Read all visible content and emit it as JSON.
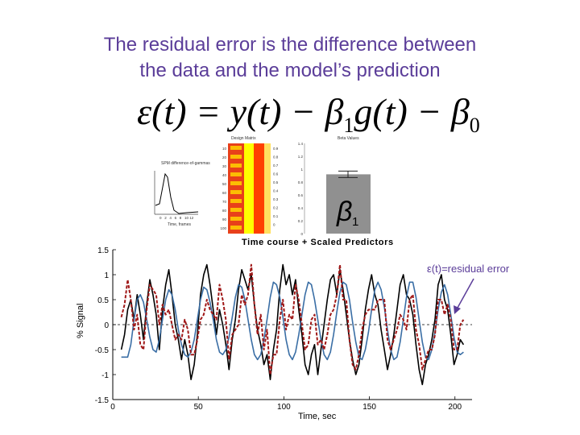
{
  "slide": {
    "title_line1": "The residual error is the difference between",
    "title_line2": "the data and the model’s prediction",
    "equation": {
      "lhs": "ε(t)",
      "equals": " = ",
      "y": "y(t)",
      "minus1": " − ",
      "beta": "β",
      "sub1": "1",
      "g": "g(t)",
      "minus2": " − ",
      "sub0": "0"
    },
    "annotation": "ε(t)=residual error"
  },
  "insets": {
    "hrf": {
      "title_line1": "SPM difference-of-gammas",
      "xlabel": "Time, frames",
      "ticks": [
        "0",
        "2",
        "4",
        "6",
        "8",
        "10",
        "12"
      ]
    },
    "design": {
      "title": "Design Matrix",
      "row_ticks": [
        "10",
        "20",
        "30",
        "40",
        "50",
        "60",
        "70",
        "80",
        "90",
        "100"
      ],
      "col_ticks": [
        "0.9",
        "0.8",
        "0.7",
        "0.6",
        "0.5",
        "0.4",
        "0.3",
        "0.2",
        "0.1",
        "0"
      ]
    },
    "beta": {
      "title": "Beta Values",
      "symbol": "β",
      "sub": "1",
      "yticks": [
        "1.4",
        "1.2",
        "1",
        "0.8",
        "0.6",
        "0.4",
        "0.2",
        "0"
      ],
      "value": 0.92,
      "error": 0.05
    },
    "timecourse_title": "Time course + Scaled Predictors"
  },
  "chart_data": {
    "type": "line",
    "xlabel": "Time, sec",
    "ylabel": "% Signal",
    "xlim": [
      0,
      210
    ],
    "ylim": [
      -1.5,
      1.5
    ],
    "xticks": [
      "0",
      "50",
      "100",
      "150",
      "200"
    ],
    "yticks": [
      "1.5",
      "1",
      "0.5",
      "0",
      "-0.5",
      "-1",
      "-1.5"
    ],
    "reference_line": 0,
    "series": [
      {
        "color": "#000000",
        "values": [
          -0.5,
          -0.2,
          0.3,
          0.5,
          0.1,
          0.6,
          0.2,
          -0.3,
          0.4,
          0.9,
          0.6,
          0.2,
          -0.5,
          0.3,
          0.8,
          1.1,
          0.6,
          0.0,
          -0.3,
          -0.7,
          -0.3,
          -0.6,
          -1.1,
          -0.8,
          -0.2,
          0.6,
          1.0,
          1.2,
          0.8,
          0.3,
          -0.2,
          0.3,
          0.0,
          -0.4,
          -0.9,
          -0.3,
          0.1,
          0.7,
          1.1,
          0.9,
          0.7,
          1.0,
          0.4,
          -0.1,
          -0.4,
          -0.8,
          -0.6,
          -1.1,
          -0.5,
          -0.1,
          0.7,
          1.2,
          0.8,
          1.0,
          0.6,
          0.9,
          0.3,
          -0.2,
          -0.8,
          -1.0,
          -0.6,
          -0.4,
          -1.0,
          -0.5,
          0.0,
          0.5,
          0.9,
          1.0,
          0.6,
          1.1,
          0.7,
          0.2,
          -0.3,
          -0.7,
          -1.0,
          -0.8,
          -0.3,
          0.3,
          0.7,
          1.0,
          0.6,
          0.4,
          -0.1,
          -0.5,
          -0.9,
          -0.6,
          -0.2,
          0.3,
          0.8,
          1.0,
          0.6,
          0.5,
          0.2,
          -0.4,
          -0.9,
          -1.2,
          -0.8,
          -0.6,
          -0.3,
          0.1,
          0.8,
          1.0,
          0.5,
          0.3,
          -0.2,
          -0.8,
          -0.6,
          -0.3,
          -0.4
        ]
      },
      {
        "color": "#3a6ea5",
        "values": [
          -0.65,
          -0.65,
          -0.65,
          -0.4,
          0.1,
          0.5,
          0.6,
          0.45,
          0.1,
          -0.25,
          -0.5,
          -0.55,
          -0.3,
          0.1,
          0.5,
          0.7,
          0.6,
          0.3,
          -0.1,
          -0.4,
          -0.6,
          -0.65,
          -0.55,
          -0.3,
          0.1,
          0.5,
          0.75,
          0.7,
          0.45,
          0.1,
          -0.3,
          -0.55,
          -0.6,
          -0.5,
          -0.25,
          0.15,
          0.55,
          0.8,
          0.75,
          0.5,
          0.1,
          -0.3,
          -0.6,
          -0.7,
          -0.6,
          -0.3,
          0.1,
          0.55,
          0.85,
          0.8,
          0.55,
          0.15,
          -0.3,
          -0.6,
          -0.7,
          -0.55,
          -0.2,
          0.2,
          0.6,
          0.85,
          0.8,
          0.5,
          0.1,
          -0.3,
          -0.6,
          -0.7,
          -0.55,
          -0.2,
          0.25,
          0.65,
          0.85,
          0.8,
          0.5,
          0.05,
          -0.35,
          -0.65,
          -0.7,
          -0.5,
          -0.15,
          0.3,
          0.7,
          0.85,
          0.7,
          0.35,
          -0.1,
          -0.5,
          -0.7,
          -0.65,
          -0.35,
          0.1,
          0.55,
          0.85,
          0.85,
          0.55,
          0.1,
          -0.35,
          -0.65,
          -0.7,
          -0.5,
          -0.15,
          0.3,
          0.65,
          0.8,
          0.6,
          0.2,
          -0.25,
          -0.55,
          -0.6,
          -0.55
        ]
      },
      {
        "color": "#a01818",
        "dashed": true,
        "values": [
          0.15,
          0.4,
          0.9,
          0.5,
          -0.1,
          0.2,
          -0.4,
          -0.5,
          0.3,
          0.8,
          0.7,
          0.6,
          0.0,
          0.4,
          0.2,
          0.3,
          0.0,
          -0.3,
          -0.2,
          -0.3,
          0.1,
          -0.1,
          -0.6,
          -0.6,
          -0.3,
          0.1,
          0.2,
          0.5,
          0.3,
          0.2,
          0.1,
          0.8,
          0.5,
          0.1,
          -0.7,
          -0.2,
          -0.1,
          0.0,
          0.6,
          0.4,
          0.6,
          1.2,
          0.4,
          -0.2,
          0.2,
          -0.5,
          -0.1,
          -1.0,
          -0.6,
          -0.6,
          0.1,
          0.5,
          -0.1,
          0.2,
          0.1,
          0.8,
          0.5,
          0.0,
          -0.5,
          -0.4,
          0.1,
          0.2,
          -0.4,
          -0.3,
          -0.5,
          -0.2,
          0.2,
          0.3,
          0.6,
          1.2,
          0.5,
          0.5,
          -0.3,
          -0.8,
          -0.9,
          -0.6,
          -0.1,
          0.2,
          0.3,
          0.3,
          0.3,
          0.5,
          0.5,
          0.5,
          -0.3,
          -0.5,
          -0.3,
          -0.1,
          0.2,
          0.1,
          -0.1,
          0.5,
          0.6,
          -0.1,
          -0.4,
          -0.9,
          -0.7,
          -0.5,
          -0.5,
          -0.2,
          0.5,
          0.5,
          0.2,
          0.4,
          0.1,
          -0.5,
          -0.5,
          0.0,
          0.1
        ]
      }
    ]
  }
}
